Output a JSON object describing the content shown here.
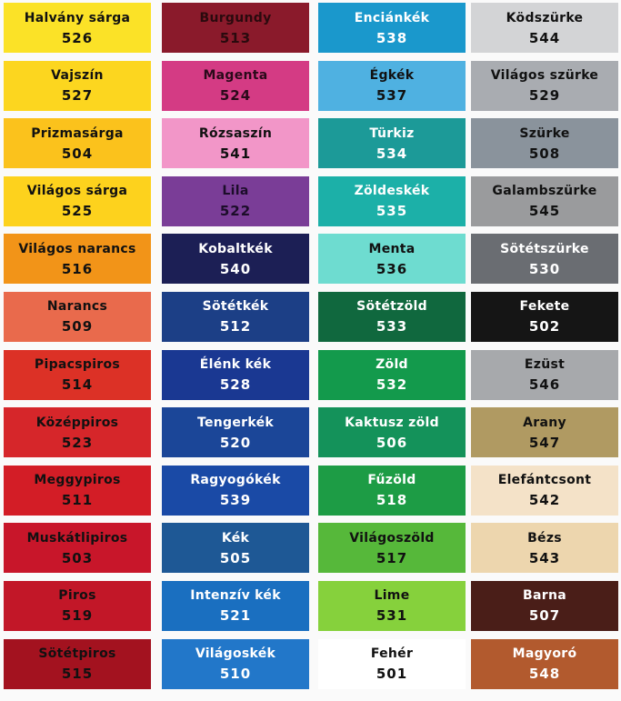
{
  "columns": [
    [
      {
        "name": "Halvány sárga",
        "code": "526",
        "color": "#fbe227",
        "text": "#111111"
      },
      {
        "name": "Vajszín",
        "code": "527",
        "color": "#fcd61f",
        "text": "#111111"
      },
      {
        "name": "Prizmasárga",
        "code": "504",
        "color": "#fbc21c",
        "text": "#111111"
      },
      {
        "name": "Világos sárga",
        "code": "525",
        "color": "#fdd21d",
        "text": "#111111"
      },
      {
        "name": "Világos narancs",
        "code": "516",
        "color": "#f29418",
        "text": "#111111"
      },
      {
        "name": "Narancs",
        "code": "509",
        "color": "#e96a4c",
        "text": "#111111"
      },
      {
        "name": "Pipacspiros",
        "code": "514",
        "color": "#dc3126",
        "text": "#111111"
      },
      {
        "name": "Középpiros",
        "code": "523",
        "color": "#d6262a",
        "text": "#111111"
      },
      {
        "name": "Meggypiros",
        "code": "511",
        "color": "#d31d26",
        "text": "#111111"
      },
      {
        "name": "Muskátlipiros",
        "code": "503",
        "color": "#c8162a",
        "text": "#111111"
      },
      {
        "name": "Piros",
        "code": "519",
        "color": "#c21728",
        "text": "#111111"
      },
      {
        "name": "Sötétpiros",
        "code": "515",
        "color": "#a3121f",
        "text": "#111111"
      }
    ],
    [
      {
        "name": "Burgundy",
        "code": "513",
        "color": "#8a1a2b",
        "text": "#2a0a0e"
      },
      {
        "name": "Magenta",
        "code": "524",
        "color": "#d43b84",
        "text": "#2a0a1a"
      },
      {
        "name": "Rózsaszín",
        "code": "541",
        "color": "#f296c8",
        "text": "#111111"
      },
      {
        "name": "Lila",
        "code": "522",
        "color": "#7a3d97",
        "text": "#1c0d2a"
      },
      {
        "name": "Kobaltkék",
        "code": "540",
        "color": "#1c1f55",
        "text": "#ffffff"
      },
      {
        "name": "Sötétkék",
        "code": "512",
        "color": "#1c3f86",
        "text": "#ffffff"
      },
      {
        "name": "Élénk kék",
        "code": "528",
        "color": "#1a3892",
        "text": "#ffffff"
      },
      {
        "name": "Tengerkék",
        "code": "520",
        "color": "#1b4698",
        "text": "#ffffff"
      },
      {
        "name": "Ragyogókék",
        "code": "539",
        "color": "#1a4aa6",
        "text": "#ffffff"
      },
      {
        "name": "Kék",
        "code": "505",
        "color": "#1e5895",
        "text": "#ffffff"
      },
      {
        "name": "Intenzív kék",
        "code": "521",
        "color": "#1a6fc0",
        "text": "#ffffff"
      },
      {
        "name": "Világoskék",
        "code": "510",
        "color": "#2277c9",
        "text": "#ffffff"
      }
    ],
    [
      {
        "name": "Enciánkék",
        "code": "538",
        "color": "#1a98cc",
        "text": "#ffffff"
      },
      {
        "name": "Égkék",
        "code": "537",
        "color": "#4fb1e1",
        "text": "#111111"
      },
      {
        "name": "Türkiz",
        "code": "534",
        "color": "#1c9a98",
        "text": "#ffffff"
      },
      {
        "name": "Zöldeskék",
        "code": "535",
        "color": "#1cb0a8",
        "text": "#ffffff"
      },
      {
        "name": "Menta",
        "code": "536",
        "color": "#6edcd0",
        "text": "#111111"
      },
      {
        "name": "Sötétzöld",
        "code": "533",
        "color": "#10683e",
        "text": "#ffffff"
      },
      {
        "name": "Zöld",
        "code": "532",
        "color": "#139a4c",
        "text": "#ffffff"
      },
      {
        "name": "Kaktusz zöld",
        "code": "506",
        "color": "#14925a",
        "text": "#ffffff"
      },
      {
        "name": "Fűzöld",
        "code": "518",
        "color": "#1d9c45",
        "text": "#ffffff"
      },
      {
        "name": "Világoszöld",
        "code": "517",
        "color": "#56b83a",
        "text": "#111111"
      },
      {
        "name": "Lime",
        "code": "531",
        "color": "#86d13c",
        "text": "#111111"
      },
      {
        "name": "Fehér",
        "code": "501",
        "color": "#ffffff",
        "text": "#111111"
      }
    ],
    [
      {
        "name": "Ködszürke",
        "code": "544",
        "color": "#d3d4d6",
        "text": "#111111"
      },
      {
        "name": "Világos szürke",
        "code": "529",
        "color": "#a9acb1",
        "text": "#111111"
      },
      {
        "name": "Szürke",
        "code": "508",
        "color": "#8a939c",
        "text": "#111111"
      },
      {
        "name": "Galambszürke",
        "code": "545",
        "color": "#9a9b9d",
        "text": "#111111"
      },
      {
        "name": "Sötétszürke",
        "code": "530",
        "color": "#6a6d72",
        "text": "#ffffff"
      },
      {
        "name": "Fekete",
        "code": "502",
        "color": "#151515",
        "text": "#ffffff"
      },
      {
        "name": "Ezüst",
        "code": "546",
        "color": "#a7a9ac",
        "text": "#111111"
      },
      {
        "name": "Arany",
        "code": "547",
        "color": "#b09a62",
        "text": "#111111"
      },
      {
        "name": "Elefántcsont",
        "code": "542",
        "color": "#f4e2c8",
        "text": "#111111"
      },
      {
        "name": "Bézs",
        "code": "543",
        "color": "#edd6ae",
        "text": "#111111"
      },
      {
        "name": "Barna",
        "code": "507",
        "color": "#4a1e18",
        "text": "#ffffff"
      },
      {
        "name": "Magyoró",
        "code": "548",
        "color": "#b25a2e",
        "text": "#ffffff"
      }
    ]
  ]
}
